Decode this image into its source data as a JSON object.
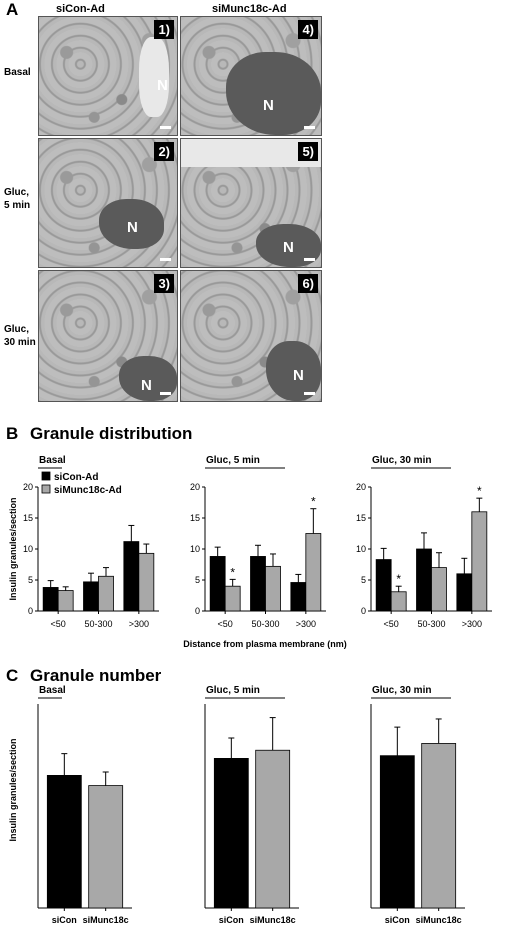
{
  "panel_a": {
    "letter": "A",
    "col_labels": [
      "siCon-Ad",
      "siMunc18c-Ad"
    ],
    "row_labels": [
      [
        "Basal"
      ],
      [
        "Gluc,",
        "5 min"
      ],
      [
        "Gluc,",
        "30 min"
      ]
    ],
    "panel_numbers": [
      "1)",
      "2)",
      "3)",
      "4)",
      "5)",
      "6)"
    ],
    "nucleus_label": "N"
  },
  "panel_b": {
    "letter": "B",
    "title": "Granule distribution",
    "legend": [
      "siCon-Ad",
      "siMunc18c-Ad"
    ],
    "xlabel": "Distance from plasma membrane (nm)"
  },
  "panel_c": {
    "letter": "C",
    "title": "Granule number"
  },
  "colors": {
    "siCon": "#000000",
    "siMunc18c": "#a8a8a8"
  },
  "chart_data": [
    {
      "type": "bar",
      "subtitle": "Basal",
      "categories": [
        "<50",
        "50-300",
        ">300"
      ],
      "ylabel": "Insulin granules/section",
      "ylim": [
        0,
        20
      ],
      "yticks": [
        0,
        5,
        10,
        15,
        20
      ],
      "series": [
        {
          "name": "siCon-Ad",
          "values": [
            3.8,
            4.7,
            11.2
          ],
          "errors": [
            1.1,
            1.4,
            2.6
          ]
        },
        {
          "name": "siMunc18c-Ad",
          "values": [
            3.3,
            5.6,
            9.3
          ],
          "errors": [
            0.6,
            1.4,
            1.5
          ]
        }
      ],
      "significance": []
    },
    {
      "type": "bar",
      "subtitle": "Gluc, 5 min",
      "categories": [
        "<50",
        "50-300",
        ">300"
      ],
      "ylabel": "",
      "ylim": [
        0,
        20
      ],
      "yticks": [
        0,
        5,
        10,
        15,
        20
      ],
      "series": [
        {
          "name": "siCon-Ad",
          "values": [
            8.8,
            8.8,
            4.6
          ],
          "errors": [
            1.5,
            1.8,
            1.3
          ]
        },
        {
          "name": "siMunc18c-Ad",
          "values": [
            4.0,
            7.2,
            12.5
          ],
          "errors": [
            1.1,
            2.0,
            4.0
          ]
        }
      ],
      "significance": [
        {
          "series": 1,
          "category": 0,
          "label": "*"
        },
        {
          "series": 1,
          "category": 2,
          "label": "*"
        }
      ]
    },
    {
      "type": "bar",
      "subtitle": "Gluc, 30 min",
      "categories": [
        "<50",
        "50-300",
        ">300"
      ],
      "ylabel": "",
      "ylim": [
        0,
        20
      ],
      "yticks": [
        0,
        5,
        10,
        15,
        20
      ],
      "series": [
        {
          "name": "siCon-Ad",
          "values": [
            8.3,
            10.0,
            6.0
          ],
          "errors": [
            1.8,
            2.6,
            2.5
          ]
        },
        {
          "name": "siMunc18c-Ad",
          "values": [
            3.1,
            7.0,
            16.0
          ],
          "errors": [
            0.9,
            2.4,
            2.2
          ]
        }
      ],
      "significance": [
        {
          "series": 1,
          "category": 0,
          "label": "*"
        },
        {
          "series": 1,
          "category": 2,
          "label": "*"
        }
      ]
    },
    {
      "type": "bar",
      "subtitle": "Basal",
      "categories": [
        "siCon",
        "siMunc18c"
      ],
      "ylabel": "Insulin granules/section",
      "values": [
        19.5,
        18.0
      ],
      "errors": [
        3.2,
        2.0
      ]
    },
    {
      "type": "bar",
      "subtitle": "Gluc, 5 min",
      "categories": [
        "siCon",
        "siMunc18c"
      ],
      "ylabel": "",
      "values": [
        22.0,
        23.2
      ],
      "errors": [
        3.0,
        4.8
      ]
    },
    {
      "type": "bar",
      "subtitle": "Gluc, 30 min",
      "categories": [
        "siCon",
        "siMunc18c"
      ],
      "ylabel": "",
      "values": [
        22.4,
        24.2
      ],
      "errors": [
        4.2,
        3.6
      ]
    }
  ]
}
